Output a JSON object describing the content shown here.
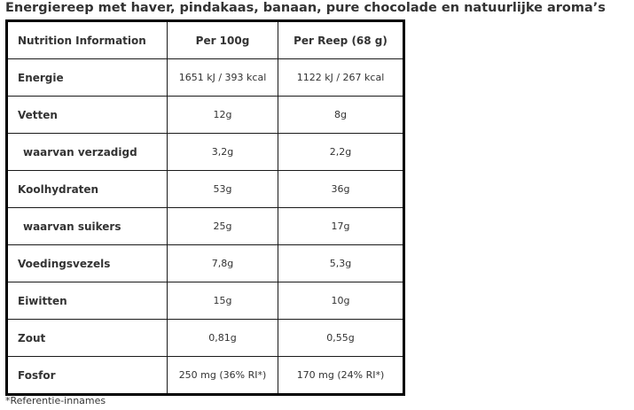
{
  "title": "Energiereep met haver, pindakaas, banaan, pure chocolade en natuurlijke aroma’s",
  "table": {
    "headers": [
      "Nutrition Information",
      "Per 100g",
      "Per Reep (68 g)"
    ],
    "rows": [
      {
        "label": "Energie",
        "per100g": "1651 kJ / 393 kcal",
        "perBar": "1122 kJ / 267 kcal",
        "sub": false
      },
      {
        "label": "Vetten",
        "per100g": "12g",
        "perBar": "8g",
        "sub": false
      },
      {
        "label": "waarvan verzadigd",
        "per100g": "3,2g",
        "perBar": "2,2g",
        "sub": true
      },
      {
        "label": "Koolhydraten",
        "per100g": "53g",
        "perBar": "36g",
        "sub": false
      },
      {
        "label": "waarvan suikers",
        "per100g": "25g",
        "perBar": "17g",
        "sub": true
      },
      {
        "label": "Voedingsvezels",
        "per100g": "7,8g",
        "perBar": "5,3g",
        "sub": false
      },
      {
        "label": "Eiwitten",
        "per100g": "15g",
        "perBar": "10g",
        "sub": false
      },
      {
        "label": "Zout",
        "per100g": "0,81g",
        "perBar": "0,55g",
        "sub": false
      },
      {
        "label": "Fosfor",
        "per100g": "250 mg (36% RI*)",
        "perBar": "170 mg (24% RI*)",
        "sub": false
      }
    ]
  },
  "footnote": "*Referentie-innames",
  "colors": {
    "text": "#333333",
    "border": "#000000",
    "background": "#ffffff"
  }
}
